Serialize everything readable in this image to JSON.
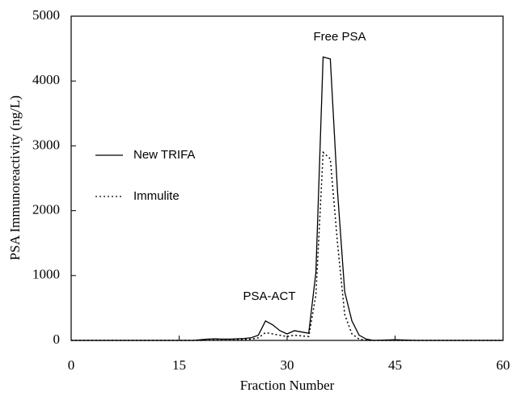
{
  "chart_data": {
    "type": "line",
    "x_label": "Fraction Number",
    "y_label": "PSA Immunoreactivity (ng/L)",
    "x": [
      0,
      17,
      18,
      19,
      20,
      21,
      22,
      23,
      24,
      25,
      26,
      27,
      28,
      29,
      30,
      31,
      32,
      33,
      34,
      35,
      36,
      37,
      38,
      39,
      40,
      41,
      42,
      45,
      48,
      60
    ],
    "series": [
      {
        "name": "New TRIFA",
        "color": "#000000",
        "style": "solid",
        "values": [
          0,
          0,
          10,
          20,
          25,
          20,
          20,
          25,
          30,
          40,
          80,
          300,
          240,
          150,
          100,
          150,
          130,
          110,
          1050,
          4370,
          4340,
          2300,
          750,
          300,
          80,
          20,
          0,
          10,
          0,
          0
        ]
      },
      {
        "name": "Immulite",
        "color": "#000000",
        "style": "dotted",
        "values": [
          0,
          0,
          0,
          5,
          10,
          10,
          10,
          15,
          15,
          20,
          40,
          120,
          100,
          80,
          60,
          80,
          70,
          60,
          700,
          2900,
          2800,
          1500,
          400,
          100,
          20,
          0,
          0,
          0,
          0,
          0
        ]
      }
    ],
    "annotations": [
      {
        "text": "Free PSA"
      },
      {
        "text": "PSA-ACT"
      }
    ],
    "xlim": [
      0,
      60
    ],
    "xticks": [
      0,
      15,
      30,
      45,
      60
    ],
    "ylim": [
      0,
      5000
    ],
    "yticks": [
      0,
      1000,
      2000,
      3000,
      4000,
      5000
    ],
    "grid": false,
    "legend": "left"
  }
}
